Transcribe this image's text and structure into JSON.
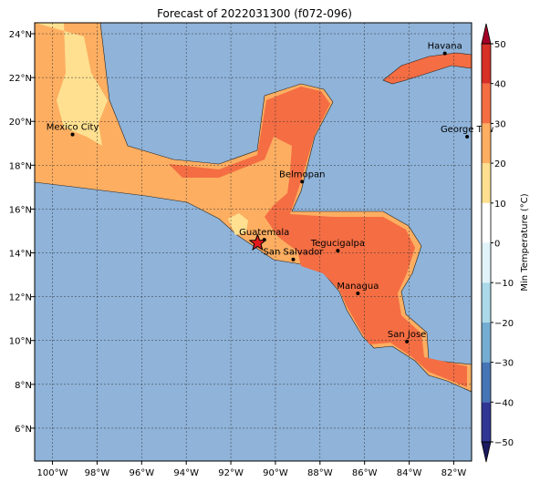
{
  "title": "Forecast of 2022031300 (f072-096)",
  "map": {
    "lon_range": [
      -100.8,
      -81.2
    ],
    "lat_range": [
      4.5,
      24.5
    ],
    "lon_ticks": [
      {
        "value": -100,
        "label": "100°W"
      },
      {
        "value": -98,
        "label": "98°W"
      },
      {
        "value": -96,
        "label": "96°W"
      },
      {
        "value": -94,
        "label": "94°W"
      },
      {
        "value": -92,
        "label": "92°W"
      },
      {
        "value": -90,
        "label": "90°W"
      },
      {
        "value": -88,
        "label": "88°W"
      },
      {
        "value": -86,
        "label": "86°W"
      },
      {
        "value": -84,
        "label": "84°W"
      },
      {
        "value": -82,
        "label": "82°W"
      }
    ],
    "lat_ticks": [
      {
        "value": 6,
        "label": "6°N"
      },
      {
        "value": 8,
        "label": "8°N"
      },
      {
        "value": 10,
        "label": "10°N"
      },
      {
        "value": 12,
        "label": "12°N"
      },
      {
        "value": 14,
        "label": "14°N"
      },
      {
        "value": 16,
        "label": "16°N"
      },
      {
        "value": 18,
        "label": "18°N"
      },
      {
        "value": 20,
        "label": "20°N"
      },
      {
        "value": 22,
        "label": "22°N"
      },
      {
        "value": 24,
        "label": "24°N"
      }
    ],
    "grid": true,
    "ocean_color": "#8FB3D9",
    "cities": [
      {
        "name": "Mexico City",
        "lon": -99.1,
        "lat": 19.4
      },
      {
        "name": "Havana",
        "lon": -82.4,
        "lat": 23.1
      },
      {
        "name": "George Tow",
        "lon": -81.4,
        "lat": 19.3
      },
      {
        "name": "Belmopan",
        "lon": -88.8,
        "lat": 17.25
      },
      {
        "name": "Guatemala",
        "lon": -90.5,
        "lat": 14.6
      },
      {
        "name": "San Salvador",
        "lon": -89.2,
        "lat": 13.7
      },
      {
        "name": "Tegucigalpa",
        "lon": -87.2,
        "lat": 14.1
      },
      {
        "name": "Managua",
        "lon": -86.3,
        "lat": 12.15
      },
      {
        "name": "San Jose",
        "lon": -84.1,
        "lat": 9.95
      }
    ],
    "star": {
      "lon": -90.8,
      "lat": 14.45,
      "color": "#e31a1c"
    }
  },
  "colorbar": {
    "label": "Min Temperature (°C)",
    "range": [
      -50,
      50
    ],
    "extend": "both",
    "ticks": [
      {
        "value": -50,
        "label": "−50"
      },
      {
        "value": -40,
        "label": "−40"
      },
      {
        "value": -30,
        "label": "−30"
      },
      {
        "value": -20,
        "label": "−20"
      },
      {
        "value": -10,
        "label": "−10"
      },
      {
        "value": 0,
        "label": "0"
      },
      {
        "value": 10,
        "label": "10"
      },
      {
        "value": 20,
        "label": "20"
      },
      {
        "value": 30,
        "label": "30"
      },
      {
        "value": 40,
        "label": "40"
      },
      {
        "value": 50,
        "label": "50"
      }
    ],
    "bins": [
      {
        "from": -50,
        "to": -40,
        "color": "#313695"
      },
      {
        "from": -40,
        "to": -30,
        "color": "#4575b4"
      },
      {
        "from": -30,
        "to": -20,
        "color": "#74add1"
      },
      {
        "from": -20,
        "to": -10,
        "color": "#abd9e9"
      },
      {
        "from": -10,
        "to": 0,
        "color": "#e0f3f8"
      },
      {
        "from": 0,
        "to": 10,
        "color": "#ffffff"
      },
      {
        "from": 10,
        "to": 20,
        "color": "#fee090"
      },
      {
        "from": 20,
        "to": 30,
        "color": "#fdae61"
      },
      {
        "from": 30,
        "to": 40,
        "color": "#f46d43"
      },
      {
        "from": 40,
        "to": 50,
        "color": "#d73027"
      }
    ],
    "under_color": "#1a1a5e",
    "over_color": "#a50026"
  }
}
